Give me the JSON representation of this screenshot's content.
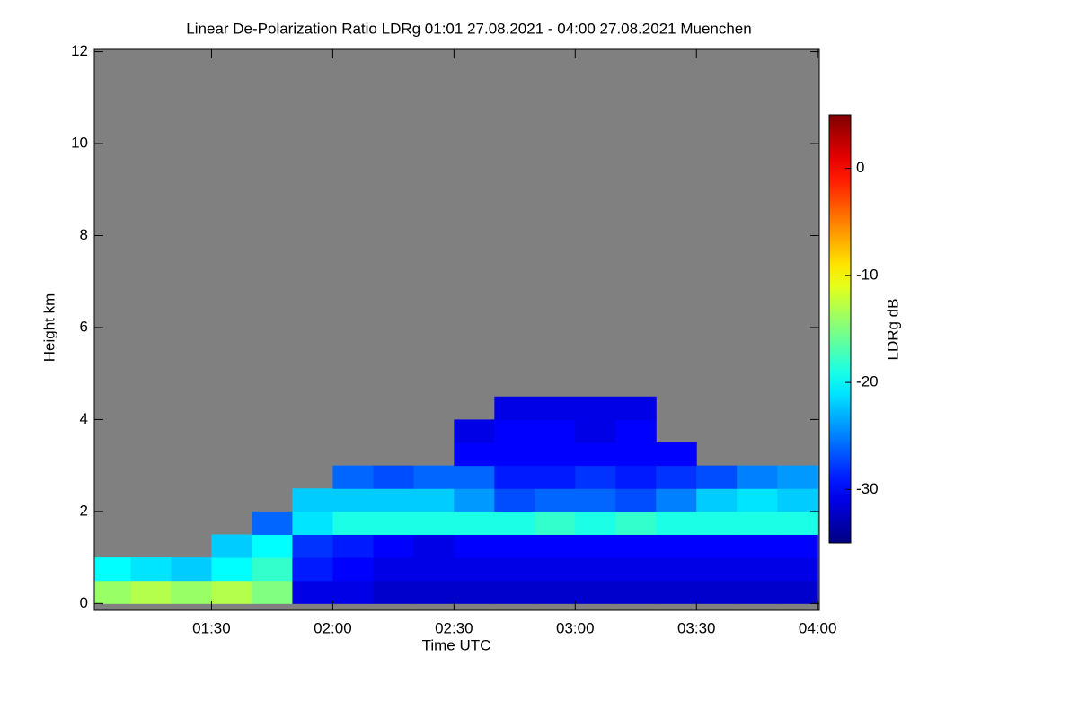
{
  "chart_data": {
    "type": "heatmap",
    "title": "Linear De-Polarization Ratio LDRg   01:01 27.08.2021 - 04:00 27.08.2021 Muenchen",
    "x_label": "Time UTC",
    "y_label": "Height km",
    "colorbar_label": "LDRg dB",
    "background": "#808080",
    "colormap": "jet",
    "xlim": [
      61,
      240.4
    ],
    "xticks": [
      {
        "value": 90,
        "label": "01:30"
      },
      {
        "value": 120,
        "label": "02:00"
      },
      {
        "value": 150,
        "label": "02:30"
      },
      {
        "value": 180,
        "label": "03:00"
      },
      {
        "value": 210,
        "label": "03:30"
      },
      {
        "value": 240,
        "label": "04:00"
      }
    ],
    "ylim": [
      -0.15,
      12.05
    ],
    "yticks": [
      0,
      2,
      4,
      6,
      8,
      10,
      12
    ],
    "clim": [
      -35,
      5
    ],
    "cticks": [
      -30,
      -20,
      -10,
      0
    ],
    "x": [
      65,
      75,
      85,
      95,
      105,
      115,
      125,
      135,
      145,
      155,
      165,
      175,
      185,
      195,
      205,
      215,
      225,
      235
    ],
    "y": [
      0.25,
      0.75,
      1.25,
      1.75,
      2.25,
      2.75,
      3.25,
      3.75,
      4.25
    ],
    "z": [
      [
        -14,
        -13,
        -14,
        -13,
        -15,
        -31,
        -31,
        -32,
        -32,
        -32,
        -32,
        -32,
        -32,
        -32,
        -32,
        -32,
        -32,
        -32
      ],
      [
        -20,
        -21,
        -22,
        -20,
        -18,
        -29,
        -30,
        -31,
        -31,
        -31,
        -31,
        -31,
        -31,
        -31,
        -31,
        -31,
        -31,
        -31
      ],
      [
        null,
        null,
        null,
        -22,
        -20,
        -28,
        -29,
        -30,
        -31,
        -30,
        -30,
        -30,
        -30,
        -30,
        -30,
        -30,
        -30,
        -30
      ],
      [
        null,
        null,
        null,
        null,
        -26,
        -21,
        -19,
        -19,
        -19,
        -19,
        -19,
        -18,
        -19,
        -18,
        -19,
        -19,
        -19,
        -19
      ],
      [
        null,
        null,
        null,
        null,
        null,
        -22,
        -22,
        -22,
        -22,
        -24,
        -27,
        -26,
        -26,
        -27,
        -25,
        -22,
        -21,
        -22
      ],
      [
        null,
        null,
        null,
        null,
        null,
        null,
        -26,
        -27,
        -26,
        -26,
        -29,
        -29,
        -28,
        -29,
        -28,
        -27,
        -25,
        -24
      ],
      [
        null,
        null,
        null,
        null,
        null,
        null,
        null,
        null,
        null,
        -30,
        -30,
        -30,
        -30,
        -30,
        -30,
        null,
        null,
        null
      ],
      [
        null,
        null,
        null,
        null,
        null,
        null,
        null,
        null,
        null,
        -31,
        -30,
        -30,
        -31,
        -30,
        null,
        null,
        null,
        null
      ],
      [
        null,
        null,
        null,
        null,
        null,
        null,
        null,
        null,
        null,
        null,
        -31,
        -31,
        -31,
        -31,
        null,
        null,
        null,
        null
      ]
    ]
  }
}
